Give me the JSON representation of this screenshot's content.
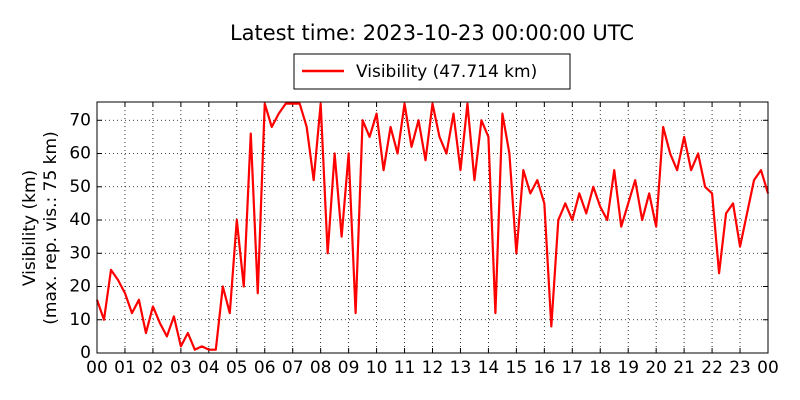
{
  "chart_data": {
    "type": "line",
    "title": "Latest time: 2023-10-23 00:00:00 UTC",
    "y_label": [
      "Visibility (km)",
      "(max. rep. vis.: 75 km)"
    ],
    "x": [
      0,
      0.25,
      0.5,
      0.75,
      1,
      1.25,
      1.5,
      1.75,
      2,
      2.25,
      2.5,
      2.75,
      3,
      3.25,
      3.5,
      3.75,
      4,
      4.25,
      4.5,
      4.75,
      5,
      5.25,
      5.5,
      5.75,
      6,
      6.25,
      6.5,
      6.75,
      7,
      7.25,
      7.5,
      7.75,
      8,
      8.25,
      8.5,
      8.75,
      9,
      9.25,
      9.5,
      9.75,
      10,
      10.25,
      10.5,
      10.75,
      11,
      11.25,
      11.5,
      11.75,
      12,
      12.25,
      12.5,
      12.75,
      13,
      13.25,
      13.5,
      13.75,
      14,
      14.25,
      14.5,
      14.75,
      15,
      15.25,
      15.5,
      15.75,
      16,
      16.25,
      16.5,
      16.75,
      17,
      17.25,
      17.5,
      17.75,
      18,
      18.25,
      18.5,
      18.75,
      19,
      19.25,
      19.5,
      19.75,
      20,
      20.25,
      20.5,
      20.75,
      21,
      21.25,
      21.5,
      21.75,
      22,
      22.25,
      22.5,
      22.75,
      23,
      23.25,
      23.5,
      23.75,
      24
    ],
    "series": [
      {
        "name": "Visibility (47.714 km)",
        "color": "#ff0000",
        "values": [
          16,
          10,
          25,
          22,
          18,
          12,
          16,
          6,
          14,
          9,
          5,
          11,
          2,
          6,
          1,
          2,
          1,
          1,
          20,
          12,
          40,
          20,
          66,
          18,
          75,
          68,
          72,
          75,
          75,
          75,
          68,
          52,
          75,
          30,
          60,
          35,
          60,
          12,
          70,
          65,
          72,
          55,
          68,
          60,
          75,
          62,
          70,
          58,
          75,
          65,
          60,
          72,
          55,
          75,
          52,
          70,
          65,
          12,
          72,
          60,
          30,
          55,
          48,
          52,
          45,
          8,
          40,
          45,
          40,
          48,
          42,
          50,
          44,
          40,
          55,
          38,
          45,
          52,
          40,
          48,
          38,
          68,
          60,
          55,
          65,
          55,
          60,
          50,
          48,
          24,
          42,
          45,
          32,
          42,
          52,
          55,
          48
        ]
      }
    ],
    "xlim": [
      0,
      24
    ],
    "xticks": [
      {
        "value": 0,
        "label": "00"
      },
      {
        "value": 1,
        "label": "01"
      },
      {
        "value": 2,
        "label": "02"
      },
      {
        "value": 3,
        "label": "03"
      },
      {
        "value": 4,
        "label": "04"
      },
      {
        "value": 5,
        "label": "05"
      },
      {
        "value": 6,
        "label": "06"
      },
      {
        "value": 7,
        "label": "07"
      },
      {
        "value": 8,
        "label": "08"
      },
      {
        "value": 9,
        "label": "09"
      },
      {
        "value": 10,
        "label": "10"
      },
      {
        "value": 11,
        "label": "11"
      },
      {
        "value": 12,
        "label": "12"
      },
      {
        "value": 13,
        "label": "13"
      },
      {
        "value": 14,
        "label": "14"
      },
      {
        "value": 15,
        "label": "15"
      },
      {
        "value": 16,
        "label": "16"
      },
      {
        "value": 17,
        "label": "17"
      },
      {
        "value": 18,
        "label": "18"
      },
      {
        "value": 19,
        "label": "19"
      },
      {
        "value": 20,
        "label": "20"
      },
      {
        "value": 21,
        "label": "21"
      },
      {
        "value": 22,
        "label": "22"
      },
      {
        "value": 23,
        "label": "23"
      },
      {
        "value": 24,
        "label": "00"
      }
    ],
    "ylim": [
      0,
      75.5
    ],
    "yticks": [
      0,
      10,
      20,
      30,
      40,
      50,
      60,
      70
    ],
    "grid": true
  }
}
